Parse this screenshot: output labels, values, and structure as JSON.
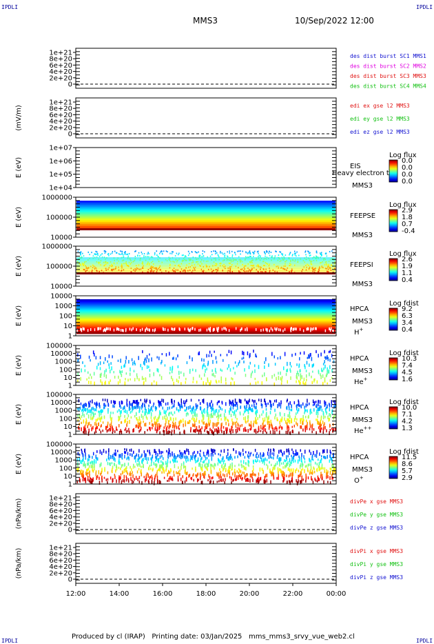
{
  "corner_label": "IPDLI",
  "header": {
    "spacecraft": "MMS3",
    "datetime": "10/Sep/2022 12:00"
  },
  "footer": {
    "produced": "Produced by cl (IRAP)",
    "printing": "Printing date: 03/Jan/2025",
    "file": "mms_mms3_srvy_vue_web2.cl"
  },
  "colors": {
    "blue": "#1010d0",
    "magenta": "#e000e0",
    "red": "#e01010",
    "green": "#10c010",
    "border": "#000000"
  },
  "chart_data": [
    {
      "id": "des-dist",
      "type": "line",
      "ylabel": "",
      "yticks": [
        "1e+21",
        "8e+20",
        "6e+20",
        "4e+20",
        "2e+20",
        "0"
      ],
      "series": [
        {
          "name": "des dist burst SC1 MMS1",
          "color": "#1010d0"
        },
        {
          "name": "des dist burst SC2 MMS2",
          "color": "#e000e0"
        },
        {
          "name": "des dist burst SC3 MMS3",
          "color": "#e01010"
        },
        {
          "name": "des dist burst SC4 MMS4",
          "color": "#10c010"
        }
      ],
      "zero_line": true
    },
    {
      "id": "edi-e",
      "type": "line",
      "ylabel": "(mV/m)",
      "yticks": [
        "1e+21",
        "8e+20",
        "6e+20",
        "4e+20",
        "2e+20",
        "0"
      ],
      "series": [
        {
          "name": "edi ex gse l2 MMS3",
          "color": "#e01010"
        },
        {
          "name": "edi ey gse l2 MMS3",
          "color": "#10c010"
        },
        {
          "name": "edi ez gse l2 MMS3",
          "color": "#1010d0"
        }
      ],
      "zero_line": true
    },
    {
      "id": "eis",
      "type": "heatmap",
      "ylabel": "E (eV)",
      "yticks": [
        "1e+07",
        "1e+06",
        "1e+05",
        "1e+04"
      ],
      "labels": [
        "EIS",
        "MMS3"
      ],
      "overlay_text": "Heavy electron to",
      "cbar_title": "Log flux",
      "cbar_ticks": [
        "0.0",
        "0.0",
        "0.0",
        "0.0"
      ],
      "fill": "none"
    },
    {
      "id": "feepse",
      "type": "heatmap",
      "ylabel": "E (eV)",
      "yticks": [
        "1000000",
        "100000",
        "10000"
      ],
      "labels": [
        "FEEPSE",
        "MMS3"
      ],
      "cbar_title": "Log flux",
      "cbar_ticks": [
        "2.9",
        "1.8",
        "0.7",
        "-0.4"
      ],
      "fill": "feepse"
    },
    {
      "id": "feepsi",
      "type": "heatmap",
      "ylabel": "E (eV)",
      "yticks": [
        "1000000",
        "100000",
        "10000"
      ],
      "labels": [
        "FEEPSI",
        "MMS3"
      ],
      "cbar_title": "Log flux",
      "cbar_ticks": [
        "2.6",
        "1.9",
        "1.1",
        "0.4"
      ],
      "fill": "feepsi"
    },
    {
      "id": "hpca-h",
      "type": "heatmap",
      "ylabel": "E (eV)",
      "yticks": [
        "10000",
        "1000",
        "100",
        "10",
        "1"
      ],
      "labels": [
        "HPCA",
        "MMS3",
        "H+"
      ],
      "cbar_title": "Log fdist",
      "cbar_ticks": [
        "9.2",
        "6.3",
        "3.4",
        "0.4"
      ],
      "fill": "hpca-h"
    },
    {
      "id": "hpca-he",
      "type": "heatmap",
      "ylabel": "E (eV)",
      "yticks": [
        "100000",
        "10000",
        "1000",
        "100",
        "10",
        "1"
      ],
      "labels": [
        "HPCA",
        "MMS3",
        "He+"
      ],
      "cbar_title": "Log fdist",
      "cbar_ticks": [
        "10.3",
        "7.4",
        "4.5",
        "1.6"
      ],
      "fill": "hpca-he"
    },
    {
      "id": "hpca-hepp",
      "type": "heatmap",
      "ylabel": "E (eV)",
      "yticks": [
        "100000",
        "10000",
        "1000",
        "100",
        "10",
        "1"
      ],
      "labels": [
        "HPCA",
        "MMS3",
        "He++"
      ],
      "cbar_title": "Log fdist",
      "cbar_ticks": [
        "10.0",
        "7.1",
        "4.2",
        "1.3"
      ],
      "fill": "hpca-hepp"
    },
    {
      "id": "hpca-o",
      "type": "heatmap",
      "ylabel": "E (eV)",
      "yticks": [
        "100000",
        "10000",
        "1000",
        "100",
        "10",
        "1"
      ],
      "labels": [
        "HPCA",
        "MMS3",
        "O+"
      ],
      "cbar_title": "Log fdist",
      "cbar_ticks": [
        "11.5",
        "8.6",
        "5.7",
        "2.9"
      ],
      "fill": "hpca-o"
    },
    {
      "id": "divpe",
      "type": "line",
      "ylabel": "(nPa/km)",
      "yticks": [
        "1e+21",
        "8e+20",
        "6e+20",
        "4e+20",
        "2e+20",
        "0"
      ],
      "series": [
        {
          "name": "divPe x gse MMS3",
          "color": "#e01010"
        },
        {
          "name": "divPe y gse MMS3",
          "color": "#10c010"
        },
        {
          "name": "divPe z gse MMS3",
          "color": "#1010d0"
        }
      ],
      "zero_line": true
    },
    {
      "id": "divpi",
      "type": "line",
      "ylabel": "(nPa/km)",
      "yticks": [
        "1e+21",
        "8e+20",
        "6e+20",
        "4e+20",
        "2e+20",
        "0"
      ],
      "series": [
        {
          "name": "divPi x gse MMS3",
          "color": "#e01010"
        },
        {
          "name": "divPi y gse MMS3",
          "color": "#10c010"
        },
        {
          "name": "divPi z gse MMS3",
          "color": "#1010d0"
        }
      ],
      "zero_line": true
    }
  ],
  "xaxis": {
    "ticks": [
      "12:00",
      "14:00",
      "16:00",
      "18:00",
      "20:00",
      "22:00",
      "00:00"
    ]
  }
}
